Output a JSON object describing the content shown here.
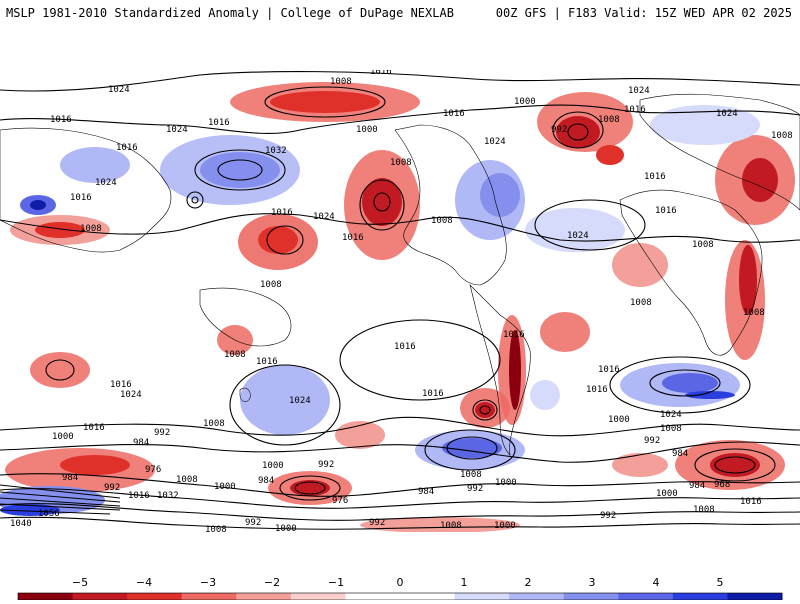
{
  "header": {
    "title_left": "MSLP 1981-2010 Standardized Anomaly | College of DuPage NEXLAB",
    "title_right": "00Z GFS | F183 Valid: 15Z WED APR 02 2025"
  },
  "map": {
    "projection": "global equirectangular",
    "positive_anomaly_color": "#e0302a",
    "negative_anomaly_color": "#2a3ee0",
    "contour_color": "#000000",
    "isobar_labels": [
      "1024",
      "1016",
      "1008",
      "1000",
      "992",
      "984",
      "976",
      "968",
      "1032",
      "1040",
      "1056"
    ],
    "visible_isobar_labels_sample": [
      "1016",
      "1008",
      "1000",
      "1024",
      "992",
      "1008",
      "1024",
      "1016",
      "1024",
      "1016",
      "1024",
      "1032",
      "1016",
      "1008",
      "1008",
      "1016",
      "1024",
      "1016",
      "1008",
      "1008",
      "1024",
      "1016",
      "1008",
      "1016",
      "1016",
      "1024",
      "1016",
      "1016",
      "1000",
      "992",
      "1008",
      "984",
      "976",
      "1008",
      "1000",
      "984",
      "1016",
      "1032",
      "1008",
      "992",
      "1008",
      "1000",
      "992",
      "984",
      "976",
      "984",
      "992",
      "1000",
      "1008",
      "992",
      "1000",
      "1008",
      "1000",
      "968",
      "984",
      "992",
      "1000",
      "1016",
      "1040",
      "1056",
      "1024",
      "1016",
      "1008",
      "1000"
    ]
  },
  "colorbar": {
    "ticks": [
      "−5",
      "−4",
      "−3",
      "−2",
      "−1",
      "0",
      "1",
      "2",
      "3",
      "4",
      "5"
    ],
    "colors": [
      "#8a0010",
      "#c21a22",
      "#e0302a",
      "#ec6a63",
      "#f4a09a",
      "#fbd0cc",
      "#ffffff",
      "#ffffff",
      "#d6dafb",
      "#b0b8f6",
      "#8590ee",
      "#5a66e4",
      "#2a3ee0",
      "#0f1ca8"
    ]
  }
}
